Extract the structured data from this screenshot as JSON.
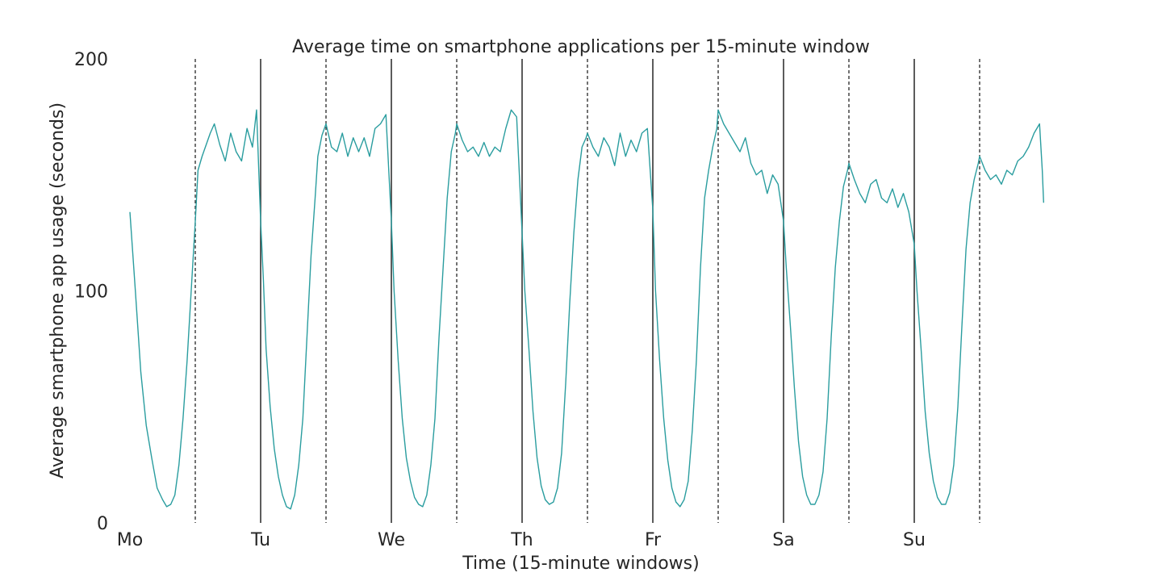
{
  "chart_data": {
    "type": "line",
    "title": "Average time on smartphone applications per 15-minute window",
    "xlabel": "Time (15-minute windows)",
    "ylabel": "Average smartphone app usage (seconds)",
    "ylim": [
      0,
      200
    ],
    "y_ticks": [
      0,
      100,
      200
    ],
    "x_range": [
      0,
      672
    ],
    "x_ticks": [
      {
        "pos": 0,
        "label": "Mo"
      },
      {
        "pos": 96,
        "label": "Tu"
      },
      {
        "pos": 192,
        "label": "We"
      },
      {
        "pos": 288,
        "label": "Th"
      },
      {
        "pos": 384,
        "label": "Fr"
      },
      {
        "pos": 480,
        "label": "Sa"
      },
      {
        "pos": 576,
        "label": "Su"
      }
    ],
    "day_boundaries": [
      96,
      192,
      288,
      384,
      480,
      576
    ],
    "midday_markers": [
      48,
      144,
      240,
      336,
      432,
      528,
      624
    ],
    "series": [
      {
        "color": "#2a9d9f",
        "points": [
          [
            0,
            134
          ],
          [
            4,
            100
          ],
          [
            8,
            65
          ],
          [
            12,
            42
          ],
          [
            16,
            28
          ],
          [
            20,
            15
          ],
          [
            24,
            10
          ],
          [
            27,
            7
          ],
          [
            30,
            8
          ],
          [
            33,
            12
          ],
          [
            36,
            25
          ],
          [
            39,
            45
          ],
          [
            42,
            70
          ],
          [
            45,
            100
          ],
          [
            48,
            130
          ],
          [
            50,
            152
          ],
          [
            53,
            158
          ],
          [
            56,
            163
          ],
          [
            59,
            168
          ],
          [
            62,
            172
          ],
          [
            66,
            163
          ],
          [
            70,
            156
          ],
          [
            74,
            168
          ],
          [
            78,
            160
          ],
          [
            82,
            156
          ],
          [
            86,
            170
          ],
          [
            90,
            162
          ],
          [
            93,
            178
          ],
          [
            96,
            130
          ],
          [
            98,
            105
          ],
          [
            100,
            75
          ],
          [
            103,
            50
          ],
          [
            106,
            32
          ],
          [
            109,
            20
          ],
          [
            112,
            12
          ],
          [
            115,
            7
          ],
          [
            118,
            6
          ],
          [
            121,
            12
          ],
          [
            124,
            25
          ],
          [
            127,
            45
          ],
          [
            130,
            80
          ],
          [
            133,
            115
          ],
          [
            136,
            140
          ],
          [
            138,
            158
          ],
          [
            141,
            167
          ],
          [
            144,
            172
          ],
          [
            148,
            162
          ],
          [
            152,
            160
          ],
          [
            156,
            168
          ],
          [
            160,
            158
          ],
          [
            164,
            166
          ],
          [
            168,
            160
          ],
          [
            172,
            166
          ],
          [
            176,
            158
          ],
          [
            180,
            170
          ],
          [
            184,
            172
          ],
          [
            188,
            176
          ],
          [
            192,
            130
          ],
          [
            194,
            100
          ],
          [
            197,
            70
          ],
          [
            200,
            45
          ],
          [
            203,
            28
          ],
          [
            206,
            18
          ],
          [
            209,
            11
          ],
          [
            212,
            8
          ],
          [
            215,
            7
          ],
          [
            218,
            12
          ],
          [
            221,
            25
          ],
          [
            224,
            45
          ],
          [
            227,
            80
          ],
          [
            230,
            110
          ],
          [
            233,
            140
          ],
          [
            236,
            160
          ],
          [
            239,
            168
          ],
          [
            240,
            172
          ],
          [
            244,
            165
          ],
          [
            248,
            160
          ],
          [
            252,
            162
          ],
          [
            256,
            158
          ],
          [
            260,
            164
          ],
          [
            264,
            158
          ],
          [
            268,
            162
          ],
          [
            272,
            160
          ],
          [
            276,
            170
          ],
          [
            280,
            178
          ],
          [
            284,
            175
          ],
          [
            288,
            125
          ],
          [
            290,
            100
          ],
          [
            293,
            75
          ],
          [
            296,
            48
          ],
          [
            299,
            28
          ],
          [
            302,
            16
          ],
          [
            305,
            10
          ],
          [
            308,
            8
          ],
          [
            311,
            9
          ],
          [
            314,
            15
          ],
          [
            317,
            30
          ],
          [
            320,
            60
          ],
          [
            323,
            95
          ],
          [
            326,
            125
          ],
          [
            329,
            148
          ],
          [
            332,
            162
          ],
          [
            335,
            166
          ],
          [
            336,
            168
          ],
          [
            340,
            162
          ],
          [
            344,
            158
          ],
          [
            348,
            166
          ],
          [
            352,
            162
          ],
          [
            356,
            154
          ],
          [
            360,
            168
          ],
          [
            364,
            158
          ],
          [
            368,
            165
          ],
          [
            372,
            160
          ],
          [
            376,
            168
          ],
          [
            380,
            170
          ],
          [
            384,
            135
          ],
          [
            386,
            100
          ],
          [
            389,
            70
          ],
          [
            392,
            45
          ],
          [
            395,
            27
          ],
          [
            398,
            15
          ],
          [
            401,
            9
          ],
          [
            404,
            7
          ],
          [
            407,
            10
          ],
          [
            410,
            18
          ],
          [
            413,
            40
          ],
          [
            416,
            70
          ],
          [
            419,
            110
          ],
          [
            422,
            140
          ],
          [
            425,
            152
          ],
          [
            428,
            162
          ],
          [
            431,
            170
          ],
          [
            432,
            178
          ],
          [
            436,
            172
          ],
          [
            440,
            168
          ],
          [
            444,
            164
          ],
          [
            448,
            160
          ],
          [
            452,
            166
          ],
          [
            456,
            155
          ],
          [
            460,
            150
          ],
          [
            464,
            152
          ],
          [
            468,
            142
          ],
          [
            472,
            150
          ],
          [
            476,
            146
          ],
          [
            480,
            130
          ],
          [
            482,
            110
          ],
          [
            485,
            85
          ],
          [
            488,
            58
          ],
          [
            491,
            35
          ],
          [
            494,
            20
          ],
          [
            497,
            12
          ],
          [
            500,
            8
          ],
          [
            503,
            8
          ],
          [
            506,
            12
          ],
          [
            509,
            22
          ],
          [
            512,
            45
          ],
          [
            515,
            80
          ],
          [
            518,
            110
          ],
          [
            521,
            130
          ],
          [
            524,
            145
          ],
          [
            527,
            152
          ],
          [
            528,
            155
          ],
          [
            532,
            148
          ],
          [
            536,
            142
          ],
          [
            540,
            138
          ],
          [
            544,
            146
          ],
          [
            548,
            148
          ],
          [
            552,
            140
          ],
          [
            556,
            138
          ],
          [
            560,
            144
          ],
          [
            564,
            136
          ],
          [
            568,
            142
          ],
          [
            572,
            134
          ],
          [
            576,
            120
          ],
          [
            578,
            100
          ],
          [
            581,
            75
          ],
          [
            584,
            48
          ],
          [
            587,
            30
          ],
          [
            590,
            18
          ],
          [
            593,
            11
          ],
          [
            596,
            8
          ],
          [
            599,
            8
          ],
          [
            602,
            13
          ],
          [
            605,
            25
          ],
          [
            608,
            50
          ],
          [
            611,
            85
          ],
          [
            614,
            118
          ],
          [
            617,
            138
          ],
          [
            620,
            148
          ],
          [
            623,
            155
          ],
          [
            624,
            158
          ],
          [
            628,
            152
          ],
          [
            632,
            148
          ],
          [
            636,
            150
          ],
          [
            640,
            146
          ],
          [
            644,
            152
          ],
          [
            648,
            150
          ],
          [
            652,
            156
          ],
          [
            656,
            158
          ],
          [
            660,
            162
          ],
          [
            664,
            168
          ],
          [
            668,
            172
          ],
          [
            670,
            152
          ],
          [
            671,
            138
          ]
        ]
      }
    ]
  }
}
